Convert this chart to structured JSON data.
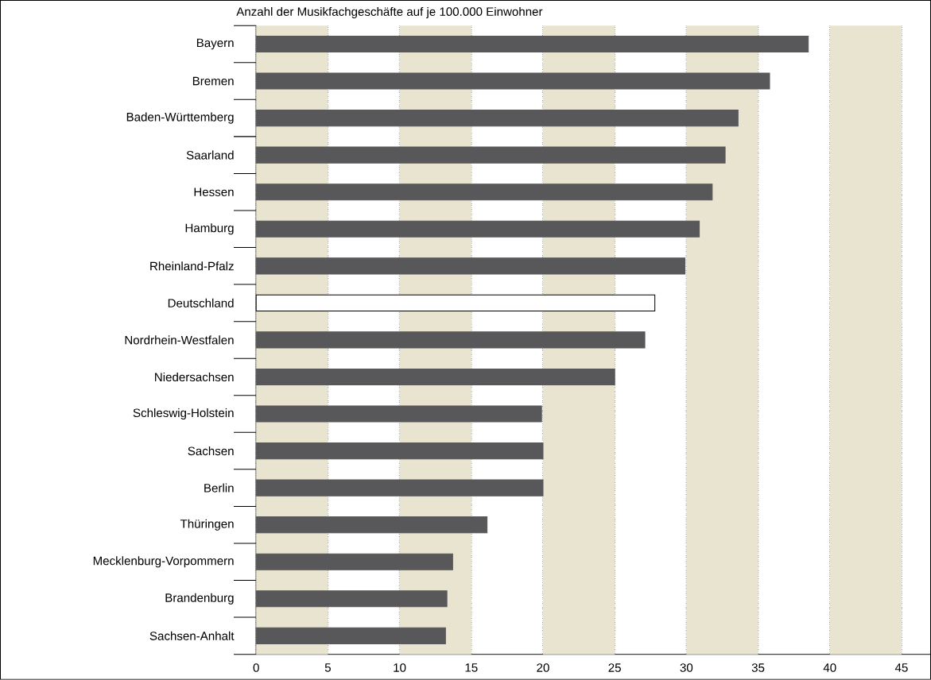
{
  "chart_data": {
    "type": "bar",
    "orientation": "horizontal",
    "title": "Anzahl der Musikfachgeschäfte auf je 100.000 Einwohner",
    "categories": [
      "Bayern",
      "Bremen",
      "Baden-Württemberg",
      "Saarland",
      "Hessen",
      "Hamburg",
      "Rheinland-Pfalz",
      "Deutschland",
      "Nordrhein-Westfalen",
      "Niedersachsen",
      "Schleswig-Holstein",
      "Sachsen",
      "Berlin",
      "Thüringen",
      "Mecklenburg-Vorpommern",
      "Brandenburg",
      "Sachsen-Anhalt"
    ],
    "values": [
      38.5,
      35.8,
      33.6,
      32.7,
      31.8,
      30.9,
      29.9,
      27.8,
      27.1,
      25.0,
      19.9,
      20.0,
      20.0,
      16.1,
      13.7,
      13.3,
      13.2
    ],
    "colors": [
      "#58585a",
      "#58585a",
      "#58585a",
      "#58585a",
      "#58585a",
      "#58585a",
      "#58585a",
      "#ffffff",
      "#58585a",
      "#58585a",
      "#58585a",
      "#58585a",
      "#58585a",
      "#58585a",
      "#58585a",
      "#58585a",
      "#58585a"
    ],
    "xlim": [
      0,
      47
    ],
    "xticks": [
      0,
      5,
      10,
      15,
      20,
      25,
      30,
      35,
      40,
      45
    ],
    "grid": "x",
    "bands": [
      {
        "axis": "x",
        "from": 0,
        "to": 5,
        "color": "#e8e4d0"
      },
      {
        "axis": "x",
        "from": 10,
        "to": 15,
        "color": "#e8e4d0"
      },
      {
        "axis": "x",
        "from": 20,
        "to": 25,
        "color": "#e8e4d0"
      },
      {
        "axis": "x",
        "from": 30,
        "to": 35,
        "color": "#e8e4d0"
      },
      {
        "axis": "x",
        "from": 40,
        "to": 45,
        "color": "#e8e4d0"
      }
    ]
  }
}
